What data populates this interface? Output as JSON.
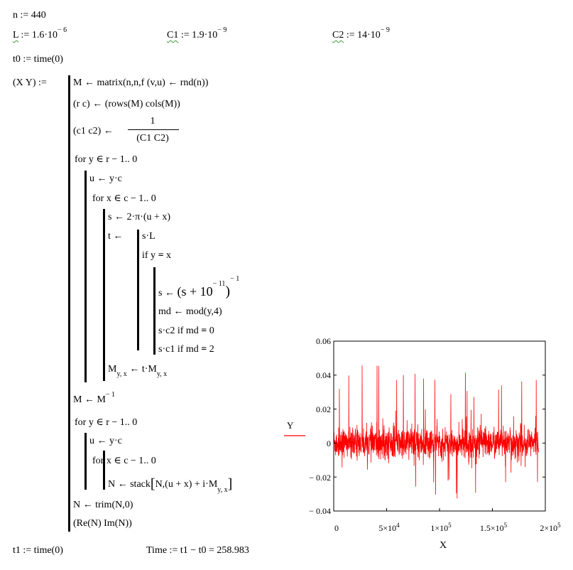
{
  "defs": {
    "n": "n := 440",
    "L_name": "L",
    "L_rest": " := 1.6·10",
    "L_exp": "− 6",
    "C1_name": "C1",
    "C1_rest": " := 1.9·10",
    "C1_exp": "− 9",
    "C2_name": "C2",
    "C2_rest": " := 14·10",
    "C2_exp": "− 9",
    "t0": "t0 := time(0)"
  },
  "program": {
    "lhs": "(X  Y) :=",
    "l1": "M ← matrix(n,n,f (v,u) ← rnd(n))",
    "l2": "(r   c) ← (rows(M)   cols(M))",
    "l3_lhs": "(c1  c2) ←",
    "l3_num": "1",
    "l3_den": "(C1   C2)",
    "l4": "for  y ∈ r − 1.. 0",
    "l5": "u ← y·c",
    "l6": "for  x ∈ c − 1.. 0",
    "l7": "s ← 2·π·(u + x)",
    "l8_lhs": "t ←",
    "l8": "s·L",
    "l9_a": "if  y ",
    "l9_op": "=",
    "l9_b": " x",
    "l10_a": "s ← ",
    "l10_b": "(s + 10",
    "l10_exp1": "− 11",
    "l10_c": ")",
    "l10_exp2": "− 1",
    "l11": "md ← mod(y,4)",
    "l12_a": "s·c2  if  md ",
    "l12_op": "=",
    "l12_b": " 0",
    "l13_a": "s·c1  if  md ",
    "l13_op": "=",
    "l13_b": " 2",
    "l14_a": "M",
    "l14_sub1": "y, x",
    "l14_b": " ← t·M",
    "l14_sub2": "y, x",
    "l15_a": "M ← M",
    "l15_exp": "− 1",
    "l16": "for  y ∈ r − 1.. 0",
    "l17": "u ← y·c",
    "l18": "for  x ∈ c − 1.. 0",
    "l19_a": "N ← stack",
    "l19_b": "N,(u + x) + i·M",
    "l19_sub": "y, x",
    "l20": "N ← trim(N,0)",
    "l21": "(Re(N)   Im(N))"
  },
  "footer": {
    "t1": "t1 := time(0)",
    "time": "Time := t1 − t0 = 258.983"
  },
  "plot_labels": {
    "y_tick_0": "0.06",
    "y_tick_1": "0.04",
    "y_tick_2": "0.02",
    "y_tick_3": "0",
    "y_tick_4": "− 0.02",
    "y_tick_5": "− 0.04",
    "x_tick_0": "0",
    "x_tick_1": "5×10",
    "x_tick_1_exp": "4",
    "x_tick_2": "1×10",
    "x_tick_2_exp": "5",
    "x_tick_3": "1.5×10",
    "x_tick_3_exp": "5",
    "x_tick_4": "2×10",
    "x_tick_4_exp": "5",
    "xlabel": "X",
    "legend": "Y"
  },
  "chart_data": {
    "type": "line",
    "xlabel": "X",
    "ylabel": "Y",
    "xlim": [
      0,
      200000
    ],
    "ylim": [
      -0.04,
      0.06
    ],
    "x_ticks": [
      0,
      50000,
      100000,
      150000,
      200000
    ],
    "y_ticks": [
      -0.04,
      -0.02,
      0,
      0.02,
      0.04,
      0.06
    ],
    "series": [
      {
        "name": "Y",
        "color": "#ff0000",
        "x_range": [
          0,
          193600
        ],
        "n_points": 193600,
        "approx_band": [
          -0.01,
          0.01
        ],
        "max": 0.047,
        "min": -0.037
      }
    ],
    "legend": "left"
  }
}
